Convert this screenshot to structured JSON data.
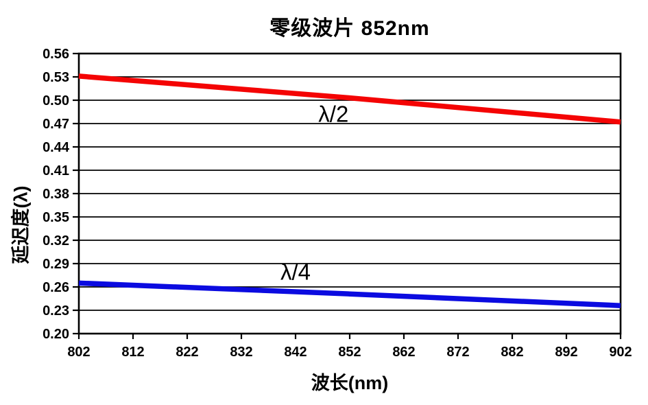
{
  "chart_data": {
    "type": "line",
    "title": "零级波片 852nm",
    "xlabel": "波长(nm)",
    "ylabel": "延迟度(λ)",
    "xlim": [
      802,
      902
    ],
    "ylim": [
      0.2,
      0.56
    ],
    "x_ticks": [
      802,
      812,
      822,
      832,
      842,
      852,
      862,
      872,
      882,
      892,
      902
    ],
    "y_ticks": [
      0.2,
      0.23,
      0.26,
      0.29,
      0.32,
      0.35,
      0.38,
      0.41,
      0.44,
      0.47,
      0.5,
      0.53,
      0.56
    ],
    "grid": "horizontal",
    "legend_position": "inline-labels",
    "axis_color": "#000000",
    "series": [
      {
        "name": "λ/2",
        "color": "#f40404",
        "x": [
          802,
          852,
          902
        ],
        "values": [
          0.531,
          0.503,
          0.472
        ],
        "label_pos": {
          "x": 849,
          "y": 0.482
        }
      },
      {
        "name": "λ/4",
        "color": "#0b0be0",
        "x": [
          802,
          852,
          902
        ],
        "values": [
          0.265,
          0.251,
          0.236
        ],
        "label_pos": {
          "x": 842,
          "y": 0.279
        }
      }
    ]
  }
}
